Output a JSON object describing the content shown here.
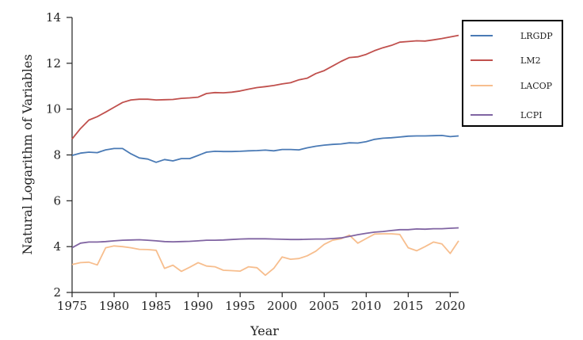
{
  "chart_data": {
    "type": "line",
    "title": "",
    "xlabel": "Year",
    "ylabel": "Natural Logarithm of Variables",
    "xlim": [
      1975,
      2021
    ],
    "ylim": [
      2,
      14
    ],
    "xticks": [
      1975,
      1980,
      1985,
      1990,
      1995,
      2000,
      2005,
      2010,
      2015,
      2020
    ],
    "yticks": [
      2,
      4,
      6,
      8,
      10,
      12,
      14
    ],
    "grid": false,
    "legend_position": "right",
    "x": [
      1975,
      1976,
      1977,
      1978,
      1979,
      1980,
      1981,
      1982,
      1983,
      1984,
      1985,
      1986,
      1987,
      1988,
      1989,
      1990,
      1991,
      1992,
      1993,
      1994,
      1995,
      1996,
      1997,
      1998,
      1999,
      2000,
      2001,
      2002,
      2003,
      2004,
      2005,
      2006,
      2007,
      2008,
      2009,
      2010,
      2011,
      2012,
      2013,
      2014,
      2015,
      2016,
      2017,
      2018,
      2019,
      2020,
      2021
    ],
    "series": [
      {
        "name": "LRGDP",
        "color": "#4a7ab5",
        "values": [
          7.98,
          8.08,
          8.12,
          8.1,
          8.22,
          8.28,
          8.28,
          8.05,
          7.87,
          7.82,
          7.68,
          7.8,
          7.74,
          7.84,
          7.84,
          7.98,
          8.12,
          8.16,
          8.15,
          8.15,
          8.16,
          8.18,
          8.19,
          8.21,
          8.18,
          8.24,
          8.24,
          8.22,
          8.31,
          8.38,
          8.43,
          8.46,
          8.48,
          8.53,
          8.52,
          8.58,
          8.68,
          8.73,
          8.75,
          8.78,
          8.82,
          8.83,
          8.83,
          8.84,
          8.85,
          8.8,
          8.83
        ]
      },
      {
        "name": "LM2",
        "color": "#c0504d",
        "values": [
          8.7,
          9.15,
          9.52,
          9.67,
          9.87,
          10.08,
          10.29,
          10.4,
          10.43,
          10.43,
          10.4,
          10.41,
          10.42,
          10.47,
          10.49,
          10.52,
          10.68,
          10.72,
          10.71,
          10.74,
          10.79,
          10.87,
          10.94,
          10.98,
          11.03,
          11.1,
          11.15,
          11.28,
          11.35,
          11.55,
          11.68,
          11.88,
          12.08,
          12.25,
          12.28,
          12.39,
          12.55,
          12.68,
          12.78,
          12.92,
          12.95,
          12.98,
          12.97,
          13.02,
          13.08,
          13.15,
          13.22
        ]
      },
      {
        "name": "LACOP",
        "color": "#f7be8e",
        "values": [
          3.22,
          3.3,
          3.32,
          3.2,
          3.95,
          4.03,
          4.0,
          3.95,
          3.88,
          3.87,
          3.84,
          3.05,
          3.19,
          2.92,
          3.1,
          3.3,
          3.15,
          3.12,
          2.97,
          2.95,
          2.93,
          3.12,
          3.08,
          2.75,
          3.05,
          3.55,
          3.45,
          3.48,
          3.6,
          3.8,
          4.1,
          4.28,
          4.34,
          4.5,
          4.15,
          4.35,
          4.55,
          4.56,
          4.56,
          4.53,
          3.95,
          3.82,
          4.0,
          4.2,
          4.12,
          3.7,
          4.25
        ]
      },
      {
        "name": "LCPI",
        "color": "#8064a2",
        "values": [
          3.95,
          4.15,
          4.2,
          4.2,
          4.22,
          4.25,
          4.28,
          4.29,
          4.3,
          4.28,
          4.25,
          4.22,
          4.21,
          4.22,
          4.23,
          4.25,
          4.28,
          4.28,
          4.29,
          4.31,
          4.33,
          4.34,
          4.34,
          4.34,
          4.33,
          4.32,
          4.31,
          4.31,
          4.32,
          4.33,
          4.33,
          4.35,
          4.38,
          4.45,
          4.52,
          4.58,
          4.63,
          4.66,
          4.7,
          4.74,
          4.74,
          4.77,
          4.76,
          4.78,
          4.78,
          4.8,
          4.82
        ]
      }
    ]
  }
}
